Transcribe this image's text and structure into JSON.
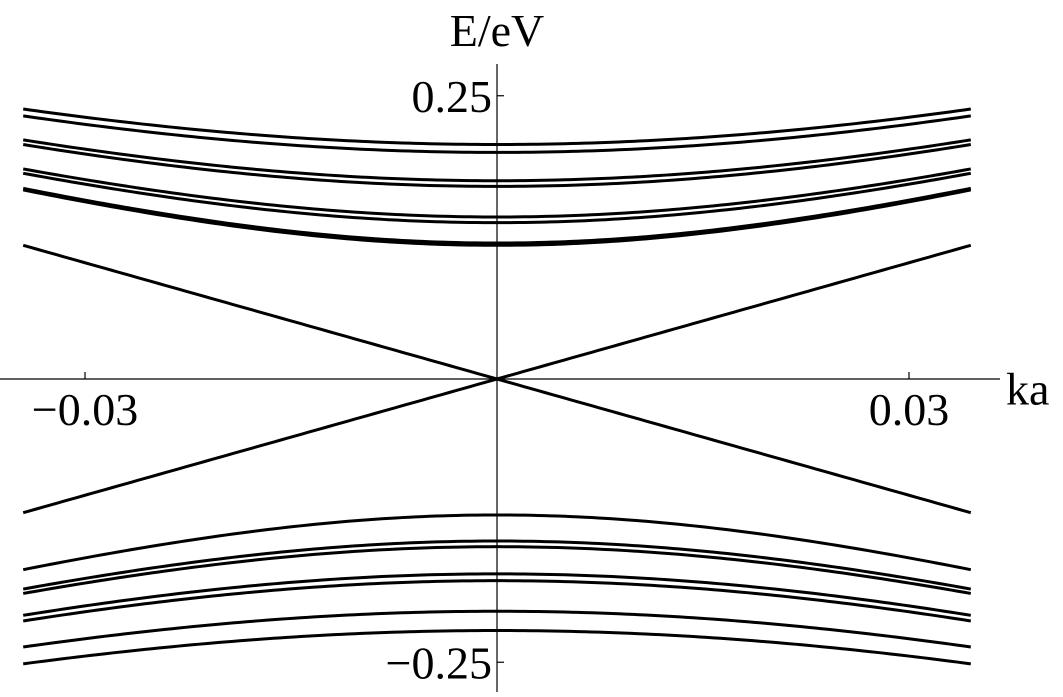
{
  "chart_data": {
    "type": "line",
    "title": "",
    "xlabel": "ka",
    "ylabel": "E/eV",
    "xlim": [
      -0.0355,
      0.0355
    ],
    "ylim": [
      -0.275,
      0.275
    ],
    "grid": false,
    "legend": "none",
    "x_ticks": [
      {
        "value": -0.03,
        "label": "−0.03"
      },
      {
        "value": 0.03,
        "label": "0.03"
      }
    ],
    "y_ticks": [
      {
        "value": 0.25,
        "label": "0.25"
      },
      {
        "value": -0.25,
        "label": "−0.25"
      }
    ],
    "line_color": "#000000",
    "series": [
      {
        "kind": "linear",
        "x": [
          -0.0345,
          0,
          0.0345
        ],
        "values": [
          0.118,
          0,
          0.118
        ]
      },
      {
        "kind": "linear",
        "x": [
          -0.0345,
          0,
          0.0345
        ],
        "values": [
          -0.118,
          0,
          -0.118
        ]
      },
      {
        "kind": "hyperbolic",
        "e0": 0.207,
        "curv": 11.5,
        "x": [
          -0.0345,
          0,
          0.0345
        ],
        "values": [
          0.25,
          0.207,
          0.25
        ]
      },
      {
        "kind": "hyperbolic",
        "e0": 0.2,
        "curv": 11.5,
        "x": [
          -0.0345,
          0,
          0.0345
        ],
        "values": [
          0.243,
          0.2,
          0.243
        ]
      },
      {
        "kind": "hyperbolic",
        "e0": 0.175,
        "curv": 11.5,
        "x": [
          -0.0345,
          0,
          0.0345
        ],
        "values": [
          0.236,
          0.175,
          0.236
        ]
      },
      {
        "kind": "hyperbolic",
        "e0": 0.17,
        "curv": 11.5,
        "x": [
          -0.0345,
          0,
          0.0345
        ],
        "values": [
          0.232,
          0.17,
          0.232
        ]
      },
      {
        "kind": "hyperbolic",
        "e0": 0.143,
        "curv": 11.5,
        "x": [
          -0.0345,
          0,
          0.0345
        ],
        "values": [
          0.224,
          0.143,
          0.224
        ]
      },
      {
        "kind": "hyperbolic",
        "e0": 0.138,
        "curv": 11.5,
        "x": [
          -0.0345,
          0,
          0.0345
        ],
        "values": [
          0.216,
          0.138,
          0.216
        ]
      },
      {
        "kind": "hyperbolic",
        "e0": 0.12,
        "curv": 11.5,
        "x": [
          -0.0345,
          0,
          0.0345
        ],
        "values": [
          0.204,
          0.12,
          0.204
        ]
      },
      {
        "kind": "hyperbolic",
        "e0": 0.118,
        "curv": 11.5,
        "x": [
          -0.0345,
          0,
          0.0345
        ],
        "values": [
          0.178,
          0.118,
          0.178
        ]
      },
      {
        "kind": "hyperbolic",
        "e0": -0.12,
        "curv": 11.5,
        "x": [
          -0.0345,
          0,
          0.0345
        ],
        "values": [
          -0.178,
          -0.12,
          -0.178
        ]
      },
      {
        "kind": "hyperbolic",
        "e0": -0.143,
        "curv": 11.5,
        "x": [
          -0.0345,
          0,
          0.0345
        ],
        "values": [
          -0.2,
          -0.143,
          -0.2
        ]
      },
      {
        "kind": "hyperbolic",
        "e0": -0.148,
        "curv": 11.5,
        "x": [
          -0.0345,
          0,
          0.0345
        ],
        "values": [
          -0.208,
          -0.148,
          -0.208
        ]
      },
      {
        "kind": "hyperbolic",
        "e0": -0.172,
        "curv": 11.5,
        "x": [
          -0.0345,
          0,
          0.0345
        ],
        "values": [
          -0.216,
          -0.172,
          -0.216
        ]
      },
      {
        "kind": "hyperbolic",
        "e0": -0.178,
        "curv": 11.5,
        "x": [
          -0.0345,
          0,
          0.0345
        ],
        "values": [
          -0.224,
          -0.178,
          -0.224
        ]
      },
      {
        "kind": "hyperbolic",
        "e0": -0.205,
        "curv": 11.5,
        "x": [
          -0.0345,
          0,
          0.0345
        ],
        "values": [
          -0.245,
          -0.205,
          -0.245
        ]
      },
      {
        "kind": "hyperbolic",
        "e0": -0.222,
        "curv": 11.5,
        "x": [
          -0.0345,
          0,
          0.0345
        ],
        "values": [
          -0.262,
          -0.222,
          -0.262
        ]
      }
    ]
  }
}
